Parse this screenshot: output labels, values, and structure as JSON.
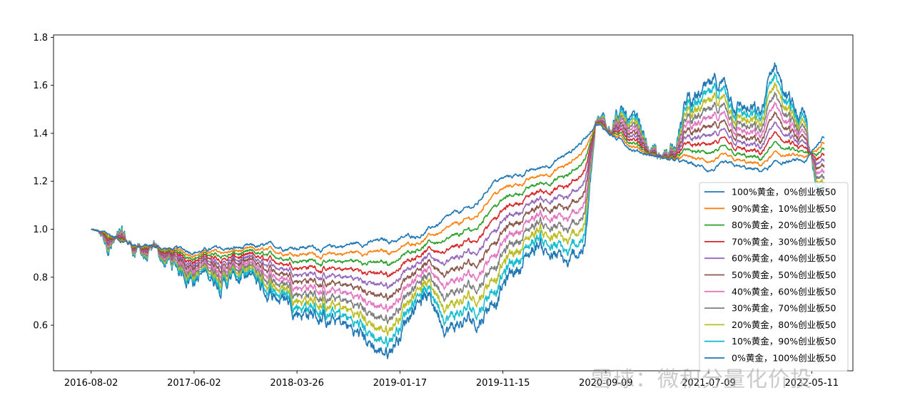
{
  "chart_data": {
    "type": "line",
    "title": "",
    "xlabel": "",
    "ylabel": "",
    "x_ticks": [
      "2016-08-02",
      "2017-06-02",
      "2018-03-26",
      "2019-01-17",
      "2019-11-15",
      "2020-09-09",
      "2021-07-09",
      "2022-05-11"
    ],
    "x_tick_index": [
      0,
      200,
      400,
      600,
      800,
      1000,
      1200,
      1400
    ],
    "y_ticks": [
      0.6,
      0.8,
      1.0,
      1.2,
      1.4,
      1.6,
      1.8
    ],
    "ylim": [
      0.41,
      1.81
    ],
    "xlim": [
      -73,
      1480
    ],
    "grid": false,
    "legend_position": "lower-right",
    "series_anchor_index": [
      0,
      80,
      180,
      290,
      410,
      460,
      510,
      560,
      580,
      640,
      700,
      750,
      780,
      870,
      930,
      960,
      980,
      1020,
      1060,
      1110,
      1160,
      1200,
      1230,
      1300,
      1330,
      1350,
      1390,
      1410,
      1420
    ],
    "gold": [
      1.0,
      0.94,
      0.91,
      0.92,
      0.93,
      0.92,
      0.94,
      0.95,
      0.95,
      0.98,
      1.05,
      1.1,
      1.2,
      1.25,
      1.32,
      1.38,
      1.45,
      1.38,
      1.33,
      1.3,
      1.27,
      1.25,
      1.26,
      1.24,
      1.27,
      1.28,
      1.28,
      1.35,
      1.38
    ],
    "chinext": [
      1.0,
      0.91,
      0.82,
      0.8,
      0.68,
      0.62,
      0.57,
      0.5,
      0.5,
      0.75,
      0.6,
      0.62,
      0.72,
      0.95,
      0.82,
      0.95,
      1.4,
      1.5,
      1.4,
      1.25,
      1.55,
      1.55,
      1.6,
      1.45,
      1.7,
      1.55,
      1.4,
      1.1,
      1.2
    ],
    "series": [
      {
        "name": "100%黄金，0%创业板50",
        "color": "#1f77b4"
      },
      {
        "name": "90%黄金，10%创业板50",
        "color": "#ff7f0e"
      },
      {
        "name": "80%黄金，20%创业板50",
        "color": "#2ca02c"
      },
      {
        "name": "70%黄金，30%创业板50",
        "color": "#d62728"
      },
      {
        "name": "60%黄金，40%创业板50",
        "color": "#9467bd"
      },
      {
        "name": "50%黄金，50%创业板50",
        "color": "#8c564b"
      },
      {
        "name": "40%黄金，60%创业板50",
        "color": "#e377c2"
      },
      {
        "name": "30%黄金，70%创业板50",
        "color": "#7f7f7f"
      },
      {
        "name": "20%黄金，80%创业板50",
        "color": "#bcbd22"
      },
      {
        "name": "10%黄金，90%创业板50",
        "color": "#17becf"
      },
      {
        "name": "0%黄金，100%创业板50",
        "color": "#1f77b4"
      }
    ]
  },
  "watermark": "雪球：微积分量化价投"
}
